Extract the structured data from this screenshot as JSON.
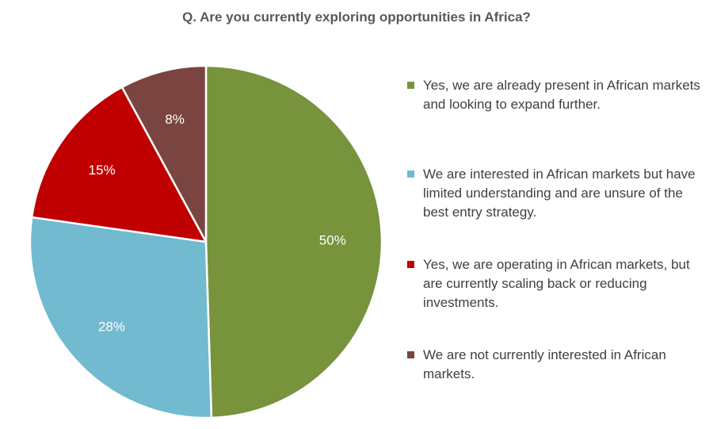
{
  "chart_data": {
    "type": "pie",
    "title": "Q. Are you currently exploring opportunities in Africa?",
    "slices": [
      {
        "label": "Yes, we are already present in African markets and looking to expand further.",
        "value": 50,
        "data_label": "50%",
        "color": "#77933C"
      },
      {
        "label": "We are interested in African markets but have limited understanding and are unsure of the best entry strategy.",
        "value": 28,
        "data_label": "28%",
        "color": "#71BACF"
      },
      {
        "label": "Yes, we are operating in African markets, but are currently scaling back or reducing investments.",
        "value": 15,
        "data_label": "15%",
        "color": "#C00000"
      },
      {
        "label": "We are not currently interested in African markets.",
        "value": 8,
        "data_label": "8%",
        "color": "#7A4540"
      }
    ],
    "legend_position": "right"
  }
}
